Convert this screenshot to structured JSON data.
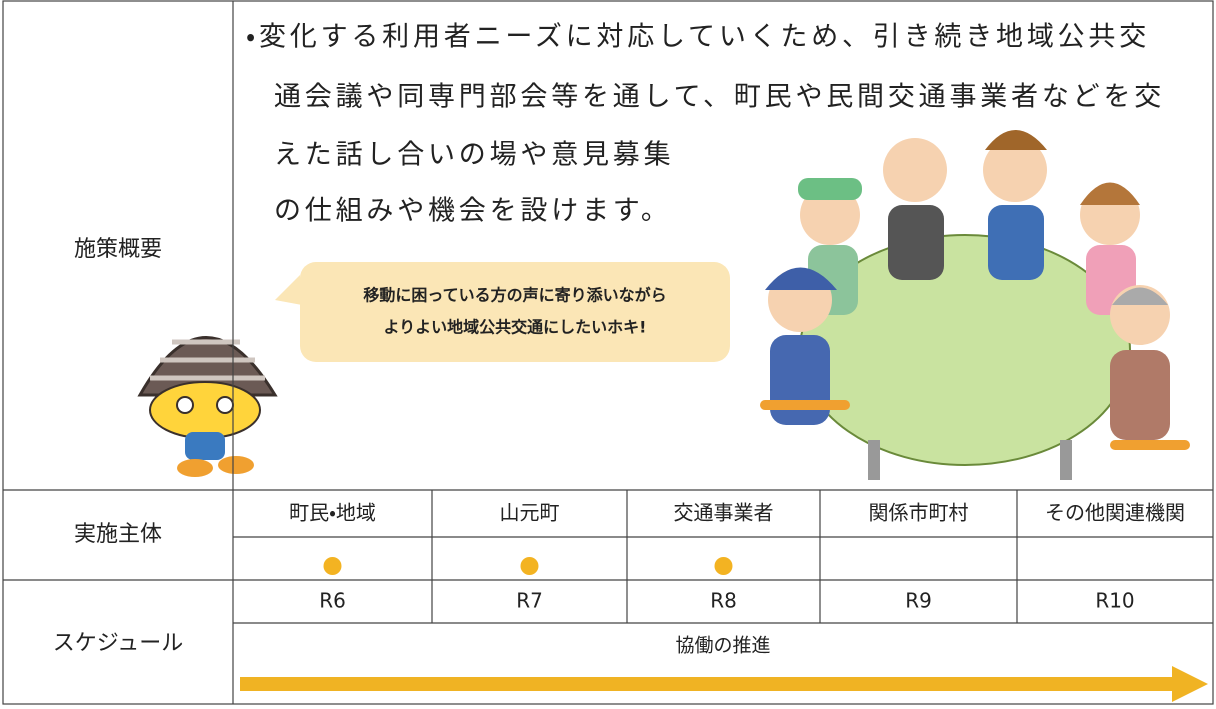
{
  "overview": {
    "label": "施策概要",
    "lines": [
      "・変化する利用者ニーズに対応していくため、引き続き地域公共交",
      "通会議や同専門部会等を通して、町民や民間交通事業者などを交",
      "えた話し合いの場や意見募集",
      "の仕組みや機会を設けます。"
    ],
    "speech": [
      "移動に困っている方の声に寄り添いながら",
      "よりよい地域公共交通にしたいホキ!"
    ]
  },
  "actors": {
    "label": "実施主体",
    "columns": [
      "町民・地域",
      "山元町",
      "交通事業者",
      "関係市町村",
      "その他関連機関"
    ],
    "involved": [
      true,
      true,
      true,
      false,
      false
    ]
  },
  "schedule": {
    "label": "スケジュール",
    "years": [
      "R6",
      "R7",
      "R8",
      "R9",
      "R10"
    ],
    "arrow_label": "協働の推進"
  }
}
